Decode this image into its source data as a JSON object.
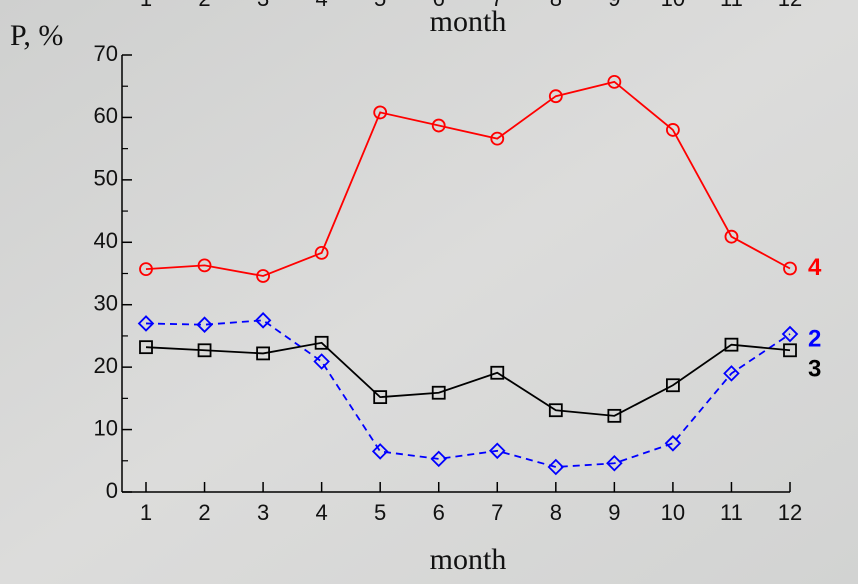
{
  "chart_data": {
    "type": "line",
    "y_label": "P, %",
    "x_label": "month",
    "top_caption": "month",
    "categories": [
      "1",
      "2",
      "3",
      "4",
      "5",
      "6",
      "7",
      "8",
      "9",
      "10",
      "11",
      "12"
    ],
    "series": [
      {
        "name": "4",
        "color": "#ff0000",
        "dashed": false,
        "marker": "circle",
        "values": [
          35.7,
          36.3,
          34.6,
          38.3,
          60.8,
          58.7,
          56.6,
          63.4,
          65.7,
          58.0,
          40.9,
          35.8
        ]
      },
      {
        "name": "2",
        "color": "#0000ff",
        "dashed": true,
        "marker": "diamond",
        "values": [
          27.0,
          26.8,
          27.5,
          20.9,
          6.5,
          5.3,
          6.6,
          4.0,
          4.6,
          7.8,
          19.0,
          25.3
        ]
      },
      {
        "name": "3",
        "color": "#000000",
        "dashed": false,
        "marker": "square",
        "values": [
          23.2,
          22.7,
          22.2,
          23.9,
          15.2,
          15.9,
          19.1,
          13.1,
          12.2,
          17.1,
          23.6,
          22.7
        ]
      }
    ],
    "ylim": [
      0,
      70
    ],
    "yticks": [
      0,
      10,
      20,
      30,
      40,
      50,
      60,
      70
    ],
    "grid": false
  }
}
